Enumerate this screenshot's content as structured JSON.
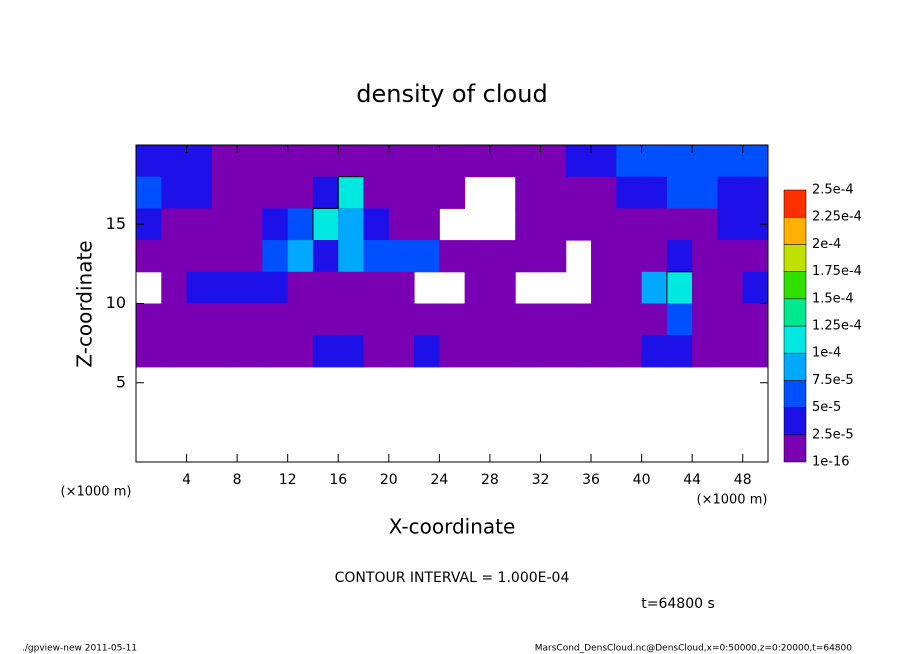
{
  "chart_data": {
    "type": "contour",
    "title": "density of cloud",
    "x_label": "X-coordinate",
    "y_label": "Z-coordinate",
    "x_unit": "(×1000 m)",
    "y_unit": "(×1000 m)",
    "annotation": "CONTOUR INTERVAL = 1.000E-04",
    "time": "t=64800 s",
    "footer_left": "./gpview-new  2011-05-11",
    "footer_right": "MarsCond_DensCloud.nc@DensCloud,x=0:50000,z=0:20000,t=64800",
    "xlim": [
      0,
      50
    ],
    "ylim": [
      0,
      20
    ],
    "xticks": [
      4,
      8,
      12,
      16,
      20,
      24,
      28,
      32,
      36,
      40,
      44,
      48
    ],
    "yticks": [
      5,
      10,
      15
    ],
    "levels": [
      1e-16,
      {
        "value": 2.5e-05,
        "label": "2.5e-5"
      },
      {
        "value": 5e-05,
        "label": "5e-5"
      },
      {
        "value": 7.5e-05,
        "label": "7.5e-5"
      },
      {
        "value": 0.0001,
        "label": "1e-4"
      },
      {
        "value": 0.000125,
        "label": "1.25e-4"
      },
      {
        "value": 0.00015,
        "label": "1.5e-4"
      },
      {
        "value": 0.000175,
        "label": "1.75e-4"
      },
      {
        "value": 0.0002,
        "label": "2e-4"
      },
      {
        "value": 0.000225,
        "label": "2.25e-4"
      },
      {
        "value": 0.00025,
        "label": "2.5e-4"
      }
    ],
    "colors": [
      "#7a00b4",
      "#1e10e8",
      "#0050ff",
      "#00a8ff",
      "#00e8e0",
      "#00e890",
      "#30e000",
      "#c0e000",
      "#ffb000",
      "#ff3000"
    ],
    "x": [
      1,
      3,
      5,
      7,
      9,
      11,
      13,
      15,
      17,
      19,
      21,
      23,
      25,
      27,
      29,
      31,
      33,
      35,
      37,
      39,
      41,
      43,
      45,
      47,
      49
    ],
    "y": [
      19,
      17,
      15,
      13,
      11,
      9,
      7
    ],
    "z": [
      [
        3e-05,
        3e-05,
        3e-05,
        1e-05,
        1e-05,
        1e-05,
        1e-05,
        1e-05,
        1e-05,
        1e-05,
        1e-05,
        1e-05,
        1e-05,
        1e-05,
        1e-05,
        1e-05,
        1e-05,
        3e-05,
        3e-05,
        6e-05,
        6e-05,
        6e-05,
        6e-05,
        6e-05,
        6e-05
      ],
      [
        6e-05,
        3e-05,
        3e-05,
        1e-05,
        1e-05,
        1e-05,
        1e-05,
        3e-05,
        0.00012,
        1e-05,
        1e-05,
        1e-05,
        1e-05,
        null,
        null,
        1e-05,
        1e-05,
        1e-05,
        1e-05,
        3e-05,
        3e-05,
        6e-05,
        6e-05,
        3e-05,
        3e-05
      ],
      [
        3e-05,
        1e-05,
        1e-05,
        1e-05,
        1e-05,
        3e-05,
        6e-05,
        0.00012,
        8e-05,
        3e-05,
        1e-05,
        1e-05,
        null,
        null,
        null,
        1e-05,
        1e-05,
        1e-05,
        1e-05,
        1e-05,
        1e-05,
        1e-05,
        1e-05,
        3e-05,
        3e-05
      ],
      [
        1e-05,
        1e-05,
        1e-05,
        1e-05,
        1e-05,
        6e-05,
        8e-05,
        3e-05,
        8e-05,
        6e-05,
        6e-05,
        6e-05,
        1e-05,
        1e-05,
        1e-05,
        1e-05,
        1e-05,
        null,
        1e-05,
        1e-05,
        1e-05,
        3e-05,
        1e-05,
        1e-05,
        1e-05
      ],
      [
        null,
        1e-05,
        3e-05,
        3e-05,
        3e-05,
        3e-05,
        1e-05,
        1e-05,
        1e-05,
        1e-05,
        1e-05,
        null,
        null,
        1e-05,
        1e-05,
        null,
        null,
        null,
        1e-05,
        1e-05,
        8e-05,
        0.00012,
        1e-05,
        1e-05,
        3e-05
      ],
      [
        1e-05,
        1e-05,
        1e-05,
        1e-05,
        1e-05,
        1e-05,
        1e-05,
        1e-05,
        1e-05,
        1e-05,
        1e-05,
        1e-05,
        1e-05,
        1e-05,
        1e-05,
        1e-05,
        1e-05,
        1e-05,
        1e-05,
        1e-05,
        1e-05,
        6e-05,
        1e-05,
        1e-05,
        1e-05
      ],
      [
        1e-05,
        1e-05,
        1e-05,
        1e-05,
        1e-05,
        1e-05,
        1e-05,
        3e-05,
        3e-05,
        1e-05,
        1e-05,
        3e-05,
        1e-05,
        1e-05,
        1e-05,
        1e-05,
        1e-05,
        1e-05,
        1e-05,
        1e-05,
        3e-05,
        3e-05,
        1e-05,
        1e-05,
        1e-05
      ]
    ]
  }
}
